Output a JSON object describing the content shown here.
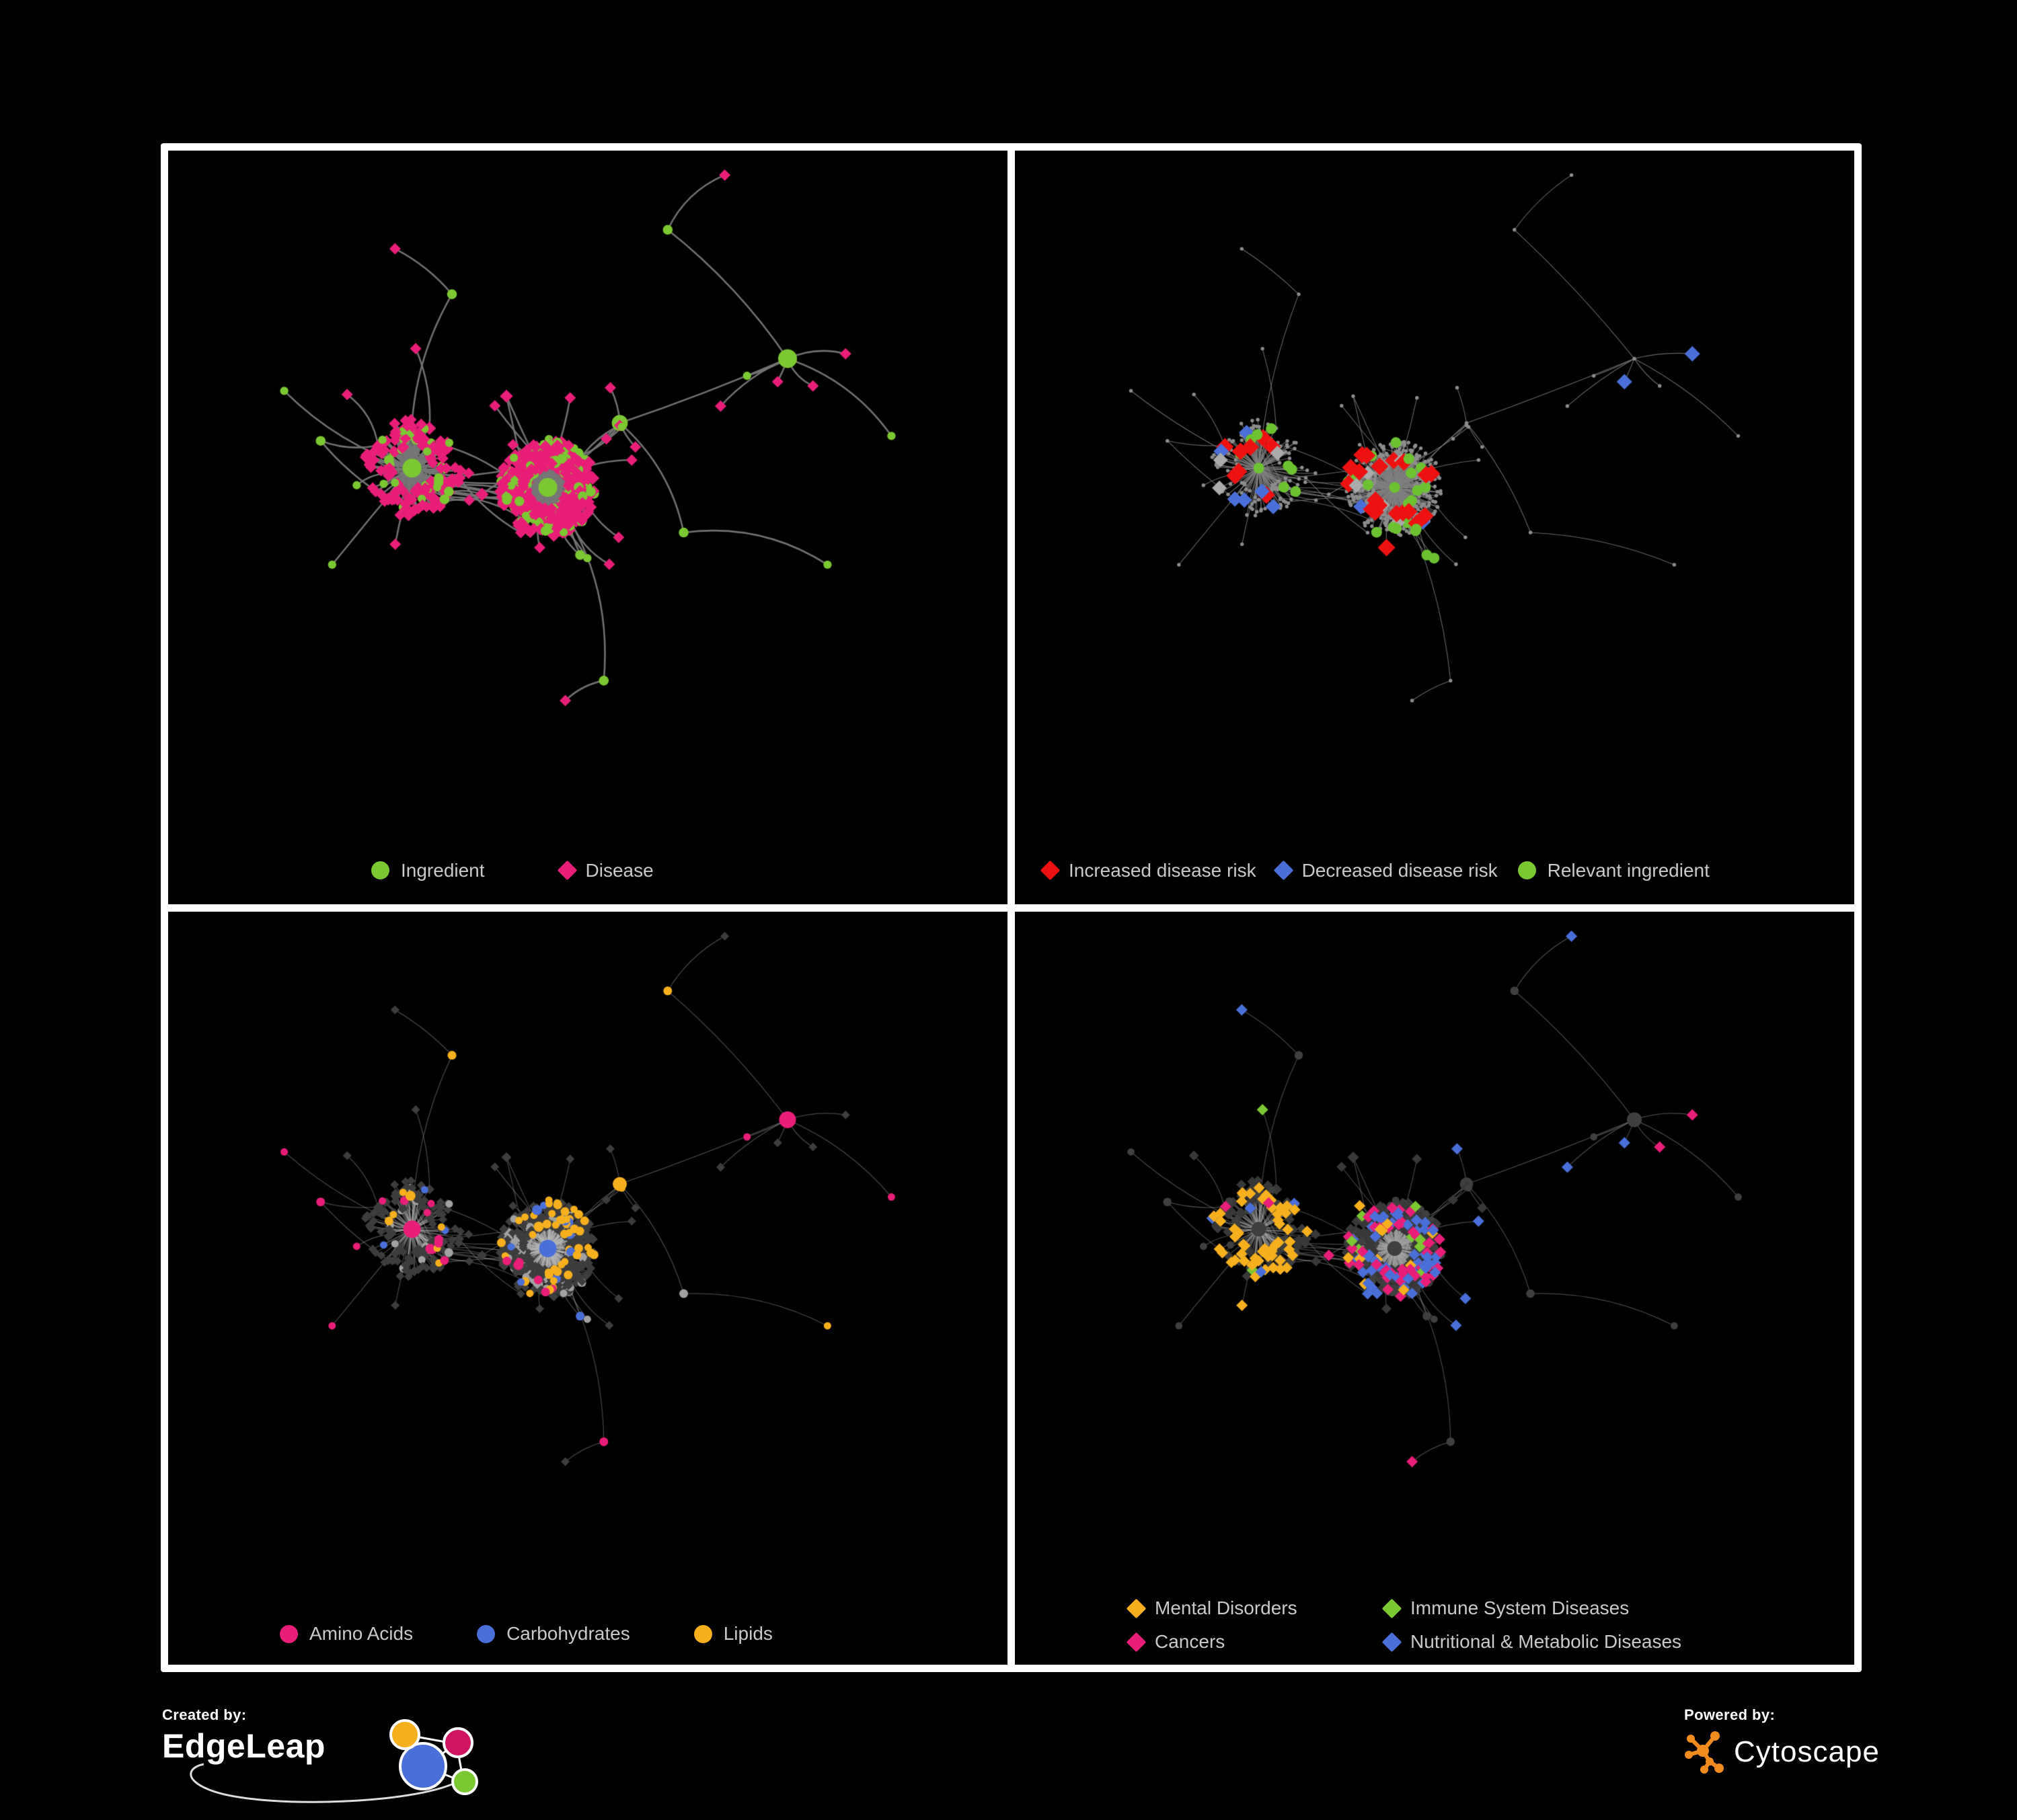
{
  "panels": [
    {
      "name": "ingredient-disease-network",
      "legend": [
        {
          "label": "Ingredient",
          "shape": "circle",
          "color": "#7cc832"
        },
        {
          "label": "Disease",
          "shape": "diamond",
          "color": "#e81e78"
        }
      ],
      "net": {
        "edge": "rgba(118,118,118,0.95)",
        "edge_w": 2.6,
        "curve": 0.42,
        "circle": "#7cc832",
        "diamond": "#e81e78",
        "circle_r": [
          5,
          1.15,
          14
        ],
        "diamond_s": 8.5,
        "tiny": false,
        "cats": []
      }
    },
    {
      "name": "disease-risk-network",
      "legend": [
        {
          "label": "Increased disease risk",
          "shape": "diamond",
          "color": "#ee1111"
        },
        {
          "label": "Decreased disease risk",
          "shape": "diamond",
          "color": "#4a6fd8"
        },
        {
          "label": "Relevant ingredient",
          "shape": "circle",
          "color": "#7cc832"
        }
      ],
      "net": {
        "edge": "rgba(128,128,128,0.8)",
        "edge_w": 1.1,
        "curve": 0.2,
        "circle": "#8d8d8d",
        "diamond": "#8d8d8d",
        "circle_r": [
          4.5,
          0.5,
          7
        ],
        "diamond_s": 4,
        "tiny": true,
        "tiny_r": 2.7,
        "cats": [
          {
            "color": "#ee1111",
            "shape": "diamond",
            "size": 13,
            "clusters": [
              [
                0.44,
                0.53,
                0.09,
                13
              ],
              [
                0.27,
                0.52,
                0.07,
                6
              ],
              [
                0.52,
                0.6,
                0.3,
                9
              ]
            ]
          },
          {
            "color": "#4a6fd8",
            "shape": "diamond",
            "size": 11.5,
            "clusters": [
              [
                0.26,
                0.5,
                0.05,
                6
              ],
              [
                0.81,
                0.37,
                0.03,
                2
              ],
              [
                0.46,
                0.52,
                0.12,
                2
              ]
            ]
          },
          {
            "color": "#ababab",
            "shape": "diamond",
            "size": 11,
            "clusters": [
              [
                0.4,
                0.55,
                0.16,
                8
              ]
            ]
          },
          {
            "color": "#6cc231",
            "shape": "circle",
            "size": 8,
            "clusters": [
              [
                0.45,
                0.47,
                0.08,
                13
              ],
              [
                0.28,
                0.44,
                0.07,
                8
              ],
              [
                0.55,
                0.6,
                0.28,
                11
              ]
            ]
          }
        ]
      }
    },
    {
      "name": "nutrient-class-network",
      "legend": [
        {
          "label": "Amino Acids",
          "shape": "circle",
          "color": "#e81e78"
        },
        {
          "label": "Carbohydrates",
          "shape": "circle",
          "color": "#4a6fd8"
        },
        {
          "label": "Lipids",
          "shape": "circle",
          "color": "#f6b01e"
        }
      ],
      "net": {
        "edge": "rgba(190,190,190,0.35)",
        "edge_w": 1.3,
        "curve": 0.3,
        "circle": "#a2a2a2",
        "diamond": "#3d3d3d",
        "circle_r": [
          4.5,
          1.0,
          13
        ],
        "diamond_s": 6.5,
        "tiny": false,
        "cats": [
          {
            "color": "#f6b01e",
            "shape": "circle",
            "size": 0,
            "clusters": [
              [
                0.54,
                0.4,
                0.055,
                24
              ],
              [
                0.48,
                0.52,
                0.1,
                20
              ],
              [
                0.5,
                0.45,
                0.3,
                16
              ]
            ]
          },
          {
            "color": "#4a6fd8",
            "shape": "circle",
            "size": 0,
            "clusters": [
              [
                0.54,
                0.4,
                0.06,
                9
              ],
              [
                0.4,
                0.4,
                0.35,
                5
              ]
            ]
          },
          {
            "color": "#e81e78",
            "shape": "circle",
            "size": 0,
            "periphery": true,
            "clusters": [
              [
                0.5,
                0.5,
                0,
                24
              ]
            ]
          }
        ]
      }
    },
    {
      "name": "disease-class-network",
      "legend": [
        {
          "label": "Mental Disorders",
          "shape": "diamond",
          "color": "#f6b01e"
        },
        {
          "label": "Immune System Diseases",
          "shape": "diamond",
          "color": "#7cc832"
        },
        {
          "label": "Cancers",
          "shape": "diamond",
          "color": "#e81e78"
        },
        {
          "label": "Nutritional & Metabolic Diseases",
          "shape": "diamond",
          "color": "#4a6fd8"
        }
      ],
      "net": {
        "edge": "rgba(165,165,165,0.42)",
        "edge_w": 1.2,
        "curve": 0.3,
        "circle": "#3f3f3f",
        "diamond": "#383838",
        "circle_r": [
          4.5,
          0.9,
          11
        ],
        "diamond_s": 7.5,
        "tiny": false,
        "cats": [
          {
            "color": "#f6b01e",
            "shape": "diamond",
            "size": 8.5,
            "clusters": [
              [
                0.27,
                0.48,
                0.065,
                60
              ],
              [
                0.35,
                0.6,
                0.3,
                8
              ]
            ]
          },
          {
            "color": "#e81e78",
            "shape": "diamond",
            "size": 8.5,
            "clusters": [
              [
                0.46,
                0.54,
                0.075,
                36
              ],
              [
                0.88,
                0.28,
                0.05,
                6
              ],
              [
                0.5,
                0.7,
                0.3,
                6
              ]
            ]
          },
          {
            "color": "#4a6fd8",
            "shape": "diamond",
            "size": 8.5,
            "clusters": [
              [
                0.62,
                0.57,
                0.05,
                12
              ],
              [
                0.78,
                0.22,
                0.07,
                10
              ],
              [
                0.15,
                0.14,
                0.05,
                5
              ],
              [
                0.48,
                0.1,
                0.04,
                4
              ],
              [
                0.7,
                0.36,
                0.04,
                6
              ],
              [
                0.3,
                0.72,
                0.12,
                9
              ],
              [
                0.5,
                0.4,
                0.45,
                14
              ]
            ]
          },
          {
            "color": "#7cc832",
            "shape": "diamond",
            "size": 8.5,
            "clusters": [
              [
                0.45,
                0.5,
                0.35,
                10
              ]
            ]
          }
        ]
      }
    }
  ],
  "network_base": {
    "seed": 20,
    "nodes": 640,
    "extra_edges": 64,
    "anchors": [
      [
        0.28,
        0.47,
        6,
        0
      ],
      [
        0.45,
        0.5,
        6,
        0
      ],
      [
        0.54,
        0.4,
        3.5,
        1
      ],
      [
        0.52,
        0.8,
        3,
        1
      ],
      [
        0.62,
        0.57,
        2.5,
        1
      ],
      [
        0.75,
        0.3,
        2,
        0
      ],
      [
        0.33,
        0.2,
        2,
        0
      ],
      [
        0.18,
        0.62,
        1.6,
        0
      ],
      [
        0.8,
        0.62,
        1.8,
        0
      ],
      [
        0.6,
        0.1,
        1.4,
        0
      ],
      [
        0.12,
        0.35,
        1.2,
        0
      ],
      [
        0.88,
        0.42,
        1.2,
        0
      ]
    ]
  },
  "footer": {
    "created_by": "Created by:",
    "edgeleap": "EdgeLeap",
    "powered_by": "Powered by:",
    "cytoscape": "Cytoscape"
  },
  "colors": {
    "green": "#7cc832",
    "pink": "#e81e78",
    "red": "#ee1111",
    "blue": "#4a6fd8",
    "orange": "#f6b01e",
    "gray": "#ababab",
    "panel_border": "#ffffff",
    "background": "#000000",
    "legend_text": "#c9c9c9"
  }
}
